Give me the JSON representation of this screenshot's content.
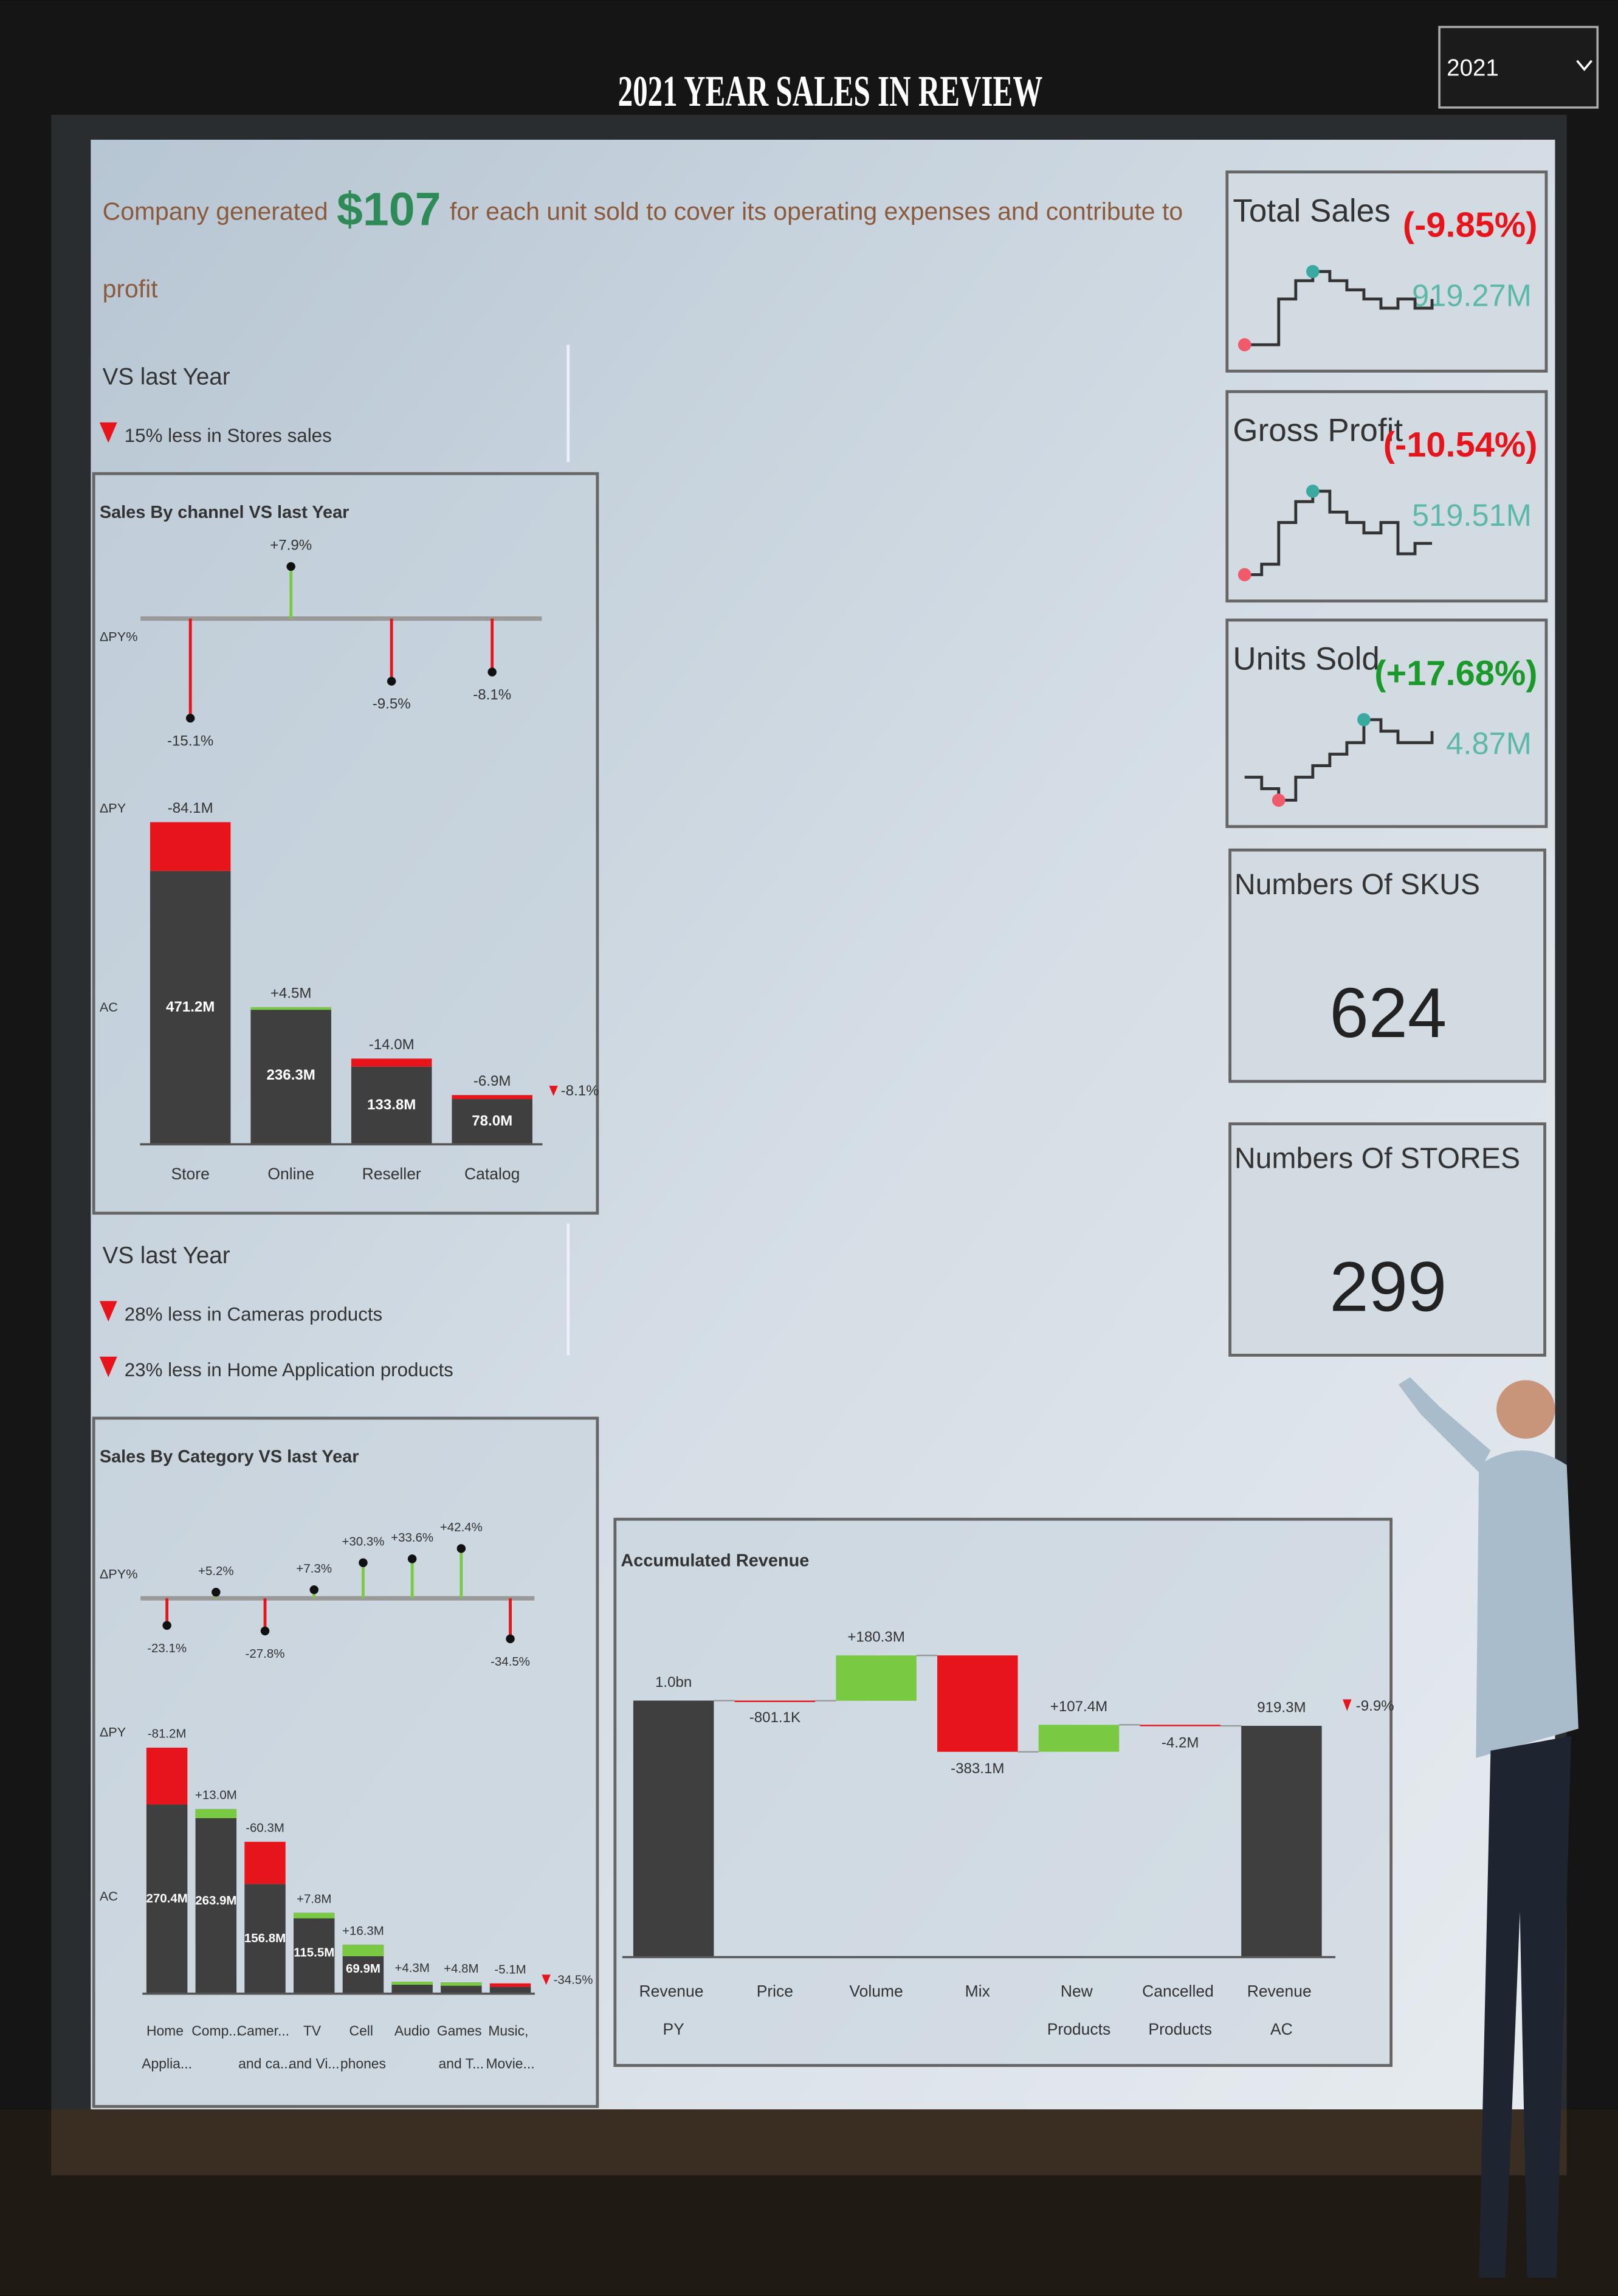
{
  "header": {
    "title": "2021 YEAR SALES IN REVIEW",
    "year": "2021"
  },
  "headline": {
    "before": "Company generated",
    "amount": "$107",
    "after_lines": [
      "for each unit sold to cover its operating expenses and contribute to",
      "profit"
    ]
  },
  "insights": [
    {
      "heading": "VS last Year",
      "items": [
        "15% less in Stores sales"
      ]
    },
    {
      "heading": "VS last Year",
      "items": [
        "28% less in Cameras products",
        "23% less in Home Application products"
      ]
    }
  ],
  "kpis": [
    {
      "title": "Total Sales",
      "change": "(-9.85%)",
      "value": "919.27M",
      "change_color": "#e8141b",
      "trend": [
        1,
        1,
        6,
        8,
        9,
        8,
        7,
        6,
        5,
        6,
        5,
        6
      ]
    },
    {
      "title": "Gross Profit",
      "change": "(-10.54%)",
      "value": "519.51M",
      "change_color": "#e8141b",
      "trend": [
        1,
        2,
        6,
        8,
        9,
        7,
        6,
        5,
        6,
        3,
        4,
        4
      ]
    },
    {
      "title": "Units Sold",
      "change": "(+17.68%)",
      "value": "4.87M",
      "change_color": "#1a9a2a",
      "trend": [
        3,
        2,
        1,
        3,
        4,
        5,
        6,
        8,
        7,
        6,
        6,
        7
      ]
    }
  ],
  "counts": [
    {
      "title": "Numbers Of SKUS",
      "value": 624
    },
    {
      "title": "Numbers Of STORES",
      "value": 299
    }
  ],
  "chart_data": [
    {
      "type": "variance",
      "title": "Sales By channel VS last Year",
      "row_labels": [
        "ΔPY%",
        "ΔPY",
        "AC"
      ],
      "categories": [
        "Store",
        "Online",
        "Reseller",
        "Catalog"
      ],
      "values": [
        471.2,
        236.3,
        133.8,
        78.0
      ],
      "value_labels": [
        "471.2M",
        "236.3M",
        "133.8M",
        "78.0M"
      ],
      "delta": [
        -84.1,
        4.5,
        -14.0,
        -6.9
      ],
      "delta_labels": [
        "-84.1M",
        "+4.5M",
        "-14.0M",
        "-6.9M"
      ],
      "delta_pct": [
        -15.1,
        7.9,
        -9.5,
        -8.1
      ],
      "delta_pct_labels": [
        "-15.1%",
        "+7.9%",
        "-9.5%",
        "-8.1%"
      ],
      "total_delta_pct": -8.1,
      "total_delta_label": "-8.1%",
      "colors": {
        "actual": "#3f3f3f",
        "negative": "#e8141b",
        "positive": "#7ac943"
      }
    },
    {
      "type": "variance",
      "title": "Sales By Category VS last Year",
      "row_labels": [
        "ΔPY%",
        "ΔPY",
        "AC"
      ],
      "categories": [
        "Home Applia...",
        "Comp...",
        "Camer... and ca...",
        "TV and Vi...",
        "Cell phones",
        "Audio",
        "Games and T...",
        "Music, Movie..."
      ],
      "values": [
        270.4,
        263.9,
        156.8,
        115.5,
        69.9,
        17.1,
        16.1,
        9.7
      ],
      "value_labels": [
        "270.4M",
        "263.9M",
        "156.8M",
        "115.5M",
        "69.9M",
        null,
        null,
        null
      ],
      "delta": [
        -81.2,
        13.0,
        -60.3,
        7.8,
        16.3,
        4.3,
        4.8,
        -5.1
      ],
      "delta_labels": [
        "-81.2M",
        "+13.0M",
        "-60.3M",
        "+7.8M",
        "+16.3M",
        "+4.3M",
        "+4.8M",
        "-5.1M"
      ],
      "delta_pct": [
        -23.1,
        5.2,
        -27.8,
        7.3,
        30.3,
        33.6,
        42.4,
        -34.5
      ],
      "delta_pct_labels": [
        "-23.1%",
        "+5.2%",
        "-27.8%",
        "+7.3%",
        "+30.3%",
        "+33.6%",
        "+42.4%",
        "-34.5%"
      ],
      "total_delta_pct": -34.5,
      "total_delta_label": "-34.5%",
      "colors": {
        "actual": "#3f3f3f",
        "negative": "#e8141b",
        "positive": "#7ac943"
      }
    },
    {
      "type": "waterfall",
      "title": "Accumulated Revenue",
      "categories": [
        "Revenue PY",
        "Price",
        "Volume",
        "Mix",
        "New Products",
        "Cancelled Products",
        "Revenue AC"
      ],
      "values": [
        1019.7,
        -0.8011,
        180.3,
        -383.1,
        107.4,
        -4.2,
        919.3
      ],
      "value_labels": [
        "1.0bn",
        "-801.1K",
        "+180.3M",
        "-383.1M",
        "+107.4M",
        "-4.2M",
        "919.3M"
      ],
      "totals": [
        true,
        false,
        false,
        false,
        false,
        false,
        true
      ],
      "total_delta_pct": -9.9,
      "total_delta_label": "-9.9%",
      "colors": {
        "actual": "#3f3f3f",
        "negative": "#e8141b",
        "positive": "#7ac943"
      }
    }
  ]
}
